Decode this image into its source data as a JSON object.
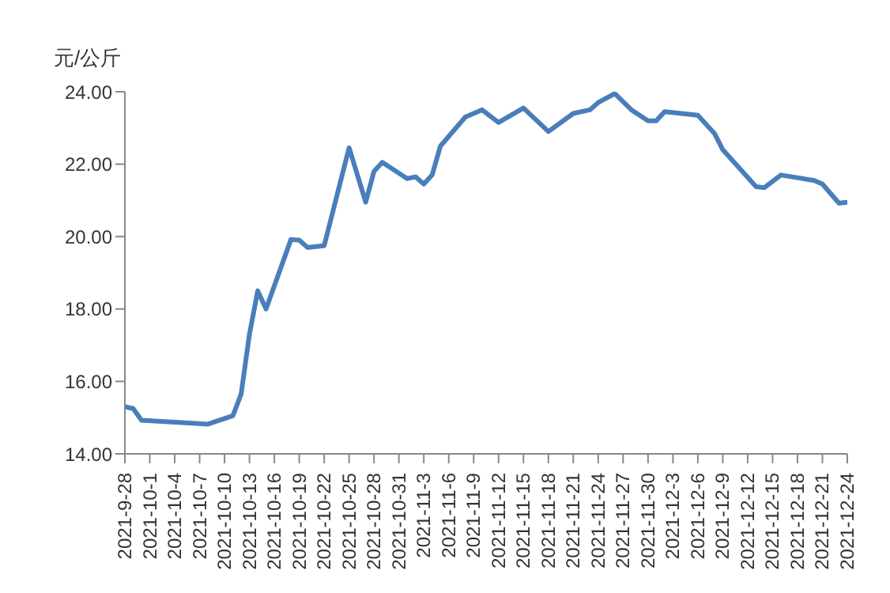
{
  "chart_data": {
    "type": "line",
    "ylabel": "元/公斤",
    "x": [
      "2021-09-28",
      "2021-09-29",
      "2021-09-30",
      "2021-10-08",
      "2021-10-11",
      "2021-10-12",
      "2021-10-13",
      "2021-10-14",
      "2021-10-15",
      "2021-10-18",
      "2021-10-19",
      "2021-10-20",
      "2021-10-22",
      "2021-10-25",
      "2021-10-27",
      "2021-10-28",
      "2021-10-29",
      "2021-11-01",
      "2021-11-02",
      "2021-11-03",
      "2021-11-04",
      "2021-11-05",
      "2021-11-08",
      "2021-11-10",
      "2021-11-12",
      "2021-11-15",
      "2021-11-18",
      "2021-11-21",
      "2021-11-23",
      "2021-11-24",
      "2021-11-26",
      "2021-11-28",
      "2021-11-30",
      "2021-12-01",
      "2021-12-02",
      "2021-12-06",
      "2021-12-08",
      "2021-12-09",
      "2021-12-13",
      "2021-12-14",
      "2021-12-16",
      "2021-12-20",
      "2021-12-21",
      "2021-12-23",
      "2021-12-24"
    ],
    "series": [
      {
        "color": "#4a7ebb",
        "values": [
          15.3,
          15.25,
          14.93,
          14.82,
          15.05,
          15.65,
          17.3,
          18.5,
          18.0,
          19.92,
          19.9,
          19.7,
          19.75,
          22.45,
          20.95,
          21.8,
          22.05,
          21.6,
          21.65,
          21.45,
          21.7,
          22.5,
          23.3,
          23.5,
          23.15,
          23.55,
          22.9,
          23.4,
          23.5,
          23.7,
          23.95,
          23.5,
          23.2,
          23.2,
          23.45,
          23.35,
          22.85,
          22.4,
          21.38,
          21.35,
          21.7,
          21.55,
          21.45,
          20.92,
          20.95
        ]
      }
    ],
    "xlim": [
      "2021-09-28",
      "2021-12-24"
    ],
    "xticks": [
      {
        "value": "2021-09-28",
        "label": "2021-9-28"
      },
      {
        "value": "2021-10-01",
        "label": "2021-10-1"
      },
      {
        "value": "2021-10-04",
        "label": "2021-10-4"
      },
      {
        "value": "2021-10-07",
        "label": "2021-10-7"
      },
      {
        "value": "2021-10-10",
        "label": "2021-10-10"
      },
      {
        "value": "2021-10-13",
        "label": "2021-10-13"
      },
      {
        "value": "2021-10-16",
        "label": "2021-10-16"
      },
      {
        "value": "2021-10-19",
        "label": "2021-10-19"
      },
      {
        "value": "2021-10-22",
        "label": "2021-10-22"
      },
      {
        "value": "2021-10-25",
        "label": "2021-10-25"
      },
      {
        "value": "2021-10-28",
        "label": "2021-10-28"
      },
      {
        "value": "2021-10-31",
        "label": "2021-10-31"
      },
      {
        "value": "2021-11-03",
        "label": "2021-11-3"
      },
      {
        "value": "2021-11-06",
        "label": "2021-11-6"
      },
      {
        "value": "2021-11-09",
        "label": "2021-11-9"
      },
      {
        "value": "2021-11-12",
        "label": "2021-11-12"
      },
      {
        "value": "2021-11-15",
        "label": "2021-11-15"
      },
      {
        "value": "2021-11-18",
        "label": "2021-11-18"
      },
      {
        "value": "2021-11-21",
        "label": "2021-11-21"
      },
      {
        "value": "2021-11-24",
        "label": "2021-11-24"
      },
      {
        "value": "2021-11-27",
        "label": "2021-11-27"
      },
      {
        "value": "2021-11-30",
        "label": "2021-11-30"
      },
      {
        "value": "2021-12-03",
        "label": "2021-12-3"
      },
      {
        "value": "2021-12-06",
        "label": "2021-12-6"
      },
      {
        "value": "2021-12-09",
        "label": "2021-12-9"
      },
      {
        "value": "2021-12-12",
        "label": "2021-12-12"
      },
      {
        "value": "2021-12-15",
        "label": "2021-12-15"
      },
      {
        "value": "2021-12-18",
        "label": "2021-12-18"
      },
      {
        "value": "2021-12-21",
        "label": "2021-12-21"
      },
      {
        "value": "2021-12-24",
        "label": "2021-12-24"
      }
    ],
    "ylim": [
      14,
      24
    ],
    "yticks": [
      {
        "value": 14,
        "label": "14.00"
      },
      {
        "value": 16,
        "label": "16.00"
      },
      {
        "value": 18,
        "label": "18.00"
      },
      {
        "value": 20,
        "label": "20.00"
      },
      {
        "value": 22,
        "label": "22.00"
      },
      {
        "value": 24,
        "label": "24.00"
      }
    ],
    "grid": false,
    "legend": false,
    "marker": "none",
    "line_style": "solid"
  }
}
